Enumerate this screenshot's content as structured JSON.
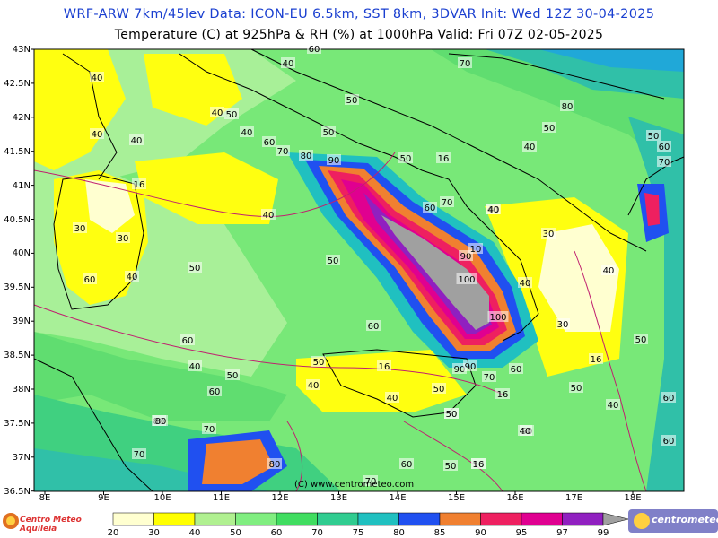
{
  "header": {
    "line1": "WRF-ARW 7km/45lev   Data: ICON-EU 6.5km, SST 8km, 3DVAR   Init: Wed 12Z 30-04-2025",
    "line2": "Temperature (C) at 925hPa & RH (%) at 1000hPa   Valid: Fri 07Z 02-05-2025"
  },
  "axes": {
    "lat_labels": [
      "43N",
      "42.5N",
      "42N",
      "41.5N",
      "41N",
      "40.5N",
      "40N",
      "39.5N",
      "39N",
      "38.5N",
      "38N",
      "37.5N",
      "37N",
      "36.5N"
    ],
    "lon_labels": [
      "8E",
      "9E",
      "10E",
      "11E",
      "12E",
      "13E",
      "14E",
      "15E",
      "16E",
      "17E",
      "18E"
    ]
  },
  "copyright": "(C) www.centrometeo.com",
  "legend": {
    "ticks": [
      "20",
      "30",
      "40",
      "50",
      "60",
      "70",
      "75",
      "80",
      "85",
      "90",
      "95",
      "97",
      "99"
    ],
    "colors": [
      "#ffffd0",
      "#ffff00",
      "#b0f090",
      "#80ee80",
      "#40dd60",
      "#30cc90",
      "#20c0c0",
      "#2050f0",
      "#f08030",
      "#ee2060",
      "#e00090",
      "#9020c0"
    ],
    "left_logo": "Centro Meteo Aquileia",
    "right_logo": "centrometeo"
  },
  "map_labels": [
    {
      "text": "40"
    },
    {
      "text": "40"
    },
    {
      "text": "60"
    },
    {
      "text": "70"
    },
    {
      "text": "40"
    },
    {
      "text": "40"
    },
    {
      "text": "50"
    },
    {
      "text": "50"
    },
    {
      "text": "80"
    },
    {
      "text": "40"
    },
    {
      "text": "50"
    },
    {
      "text": "40"
    },
    {
      "text": "60"
    },
    {
      "text": "70"
    },
    {
      "text": "50"
    },
    {
      "text": "40"
    },
    {
      "text": "80"
    },
    {
      "text": "90"
    },
    {
      "text": "50"
    },
    {
      "text": "16"
    },
    {
      "text": "40"
    },
    {
      "text": "50"
    },
    {
      "text": "60"
    },
    {
      "text": "70"
    },
    {
      "text": "16"
    },
    {
      "text": "40"
    },
    {
      "text": "30"
    },
    {
      "text": "30"
    },
    {
      "text": "60"
    },
    {
      "text": "70"
    },
    {
      "text": "40"
    },
    {
      "text": "30"
    },
    {
      "text": "90"
    },
    {
      "text": "10"
    },
    {
      "text": "40"
    },
    {
      "text": "60"
    },
    {
      "text": "50"
    },
    {
      "text": "50"
    },
    {
      "text": "40"
    },
    {
      "text": "100"
    },
    {
      "text": "90"
    },
    {
      "text": "100"
    },
    {
      "text": "60"
    },
    {
      "text": "50"
    },
    {
      "text": "30"
    },
    {
      "text": "40"
    },
    {
      "text": "60"
    },
    {
      "text": "40"
    },
    {
      "text": "50"
    },
    {
      "text": "50"
    },
    {
      "text": "60"
    },
    {
      "text": "40"
    },
    {
      "text": "16"
    },
    {
      "text": "90"
    },
    {
      "text": "70"
    },
    {
      "text": "16"
    },
    {
      "text": "50"
    },
    {
      "text": "40"
    },
    {
      "text": "50"
    },
    {
      "text": "16"
    },
    {
      "text": "60"
    },
    {
      "text": "60"
    },
    {
      "text": "50"
    },
    {
      "text": "40"
    },
    {
      "text": "50"
    },
    {
      "text": "80"
    },
    {
      "text": "40"
    },
    {
      "text": "70"
    },
    {
      "text": "50"
    },
    {
      "text": "70"
    },
    {
      "text": "80"
    },
    {
      "text": "60"
    },
    {
      "text": "50"
    },
    {
      "text": "16"
    },
    {
      "text": "70"
    },
    {
      "text": "80"
    },
    {
      "text": "60"
    },
    {
      "text": "50"
    }
  ]
}
